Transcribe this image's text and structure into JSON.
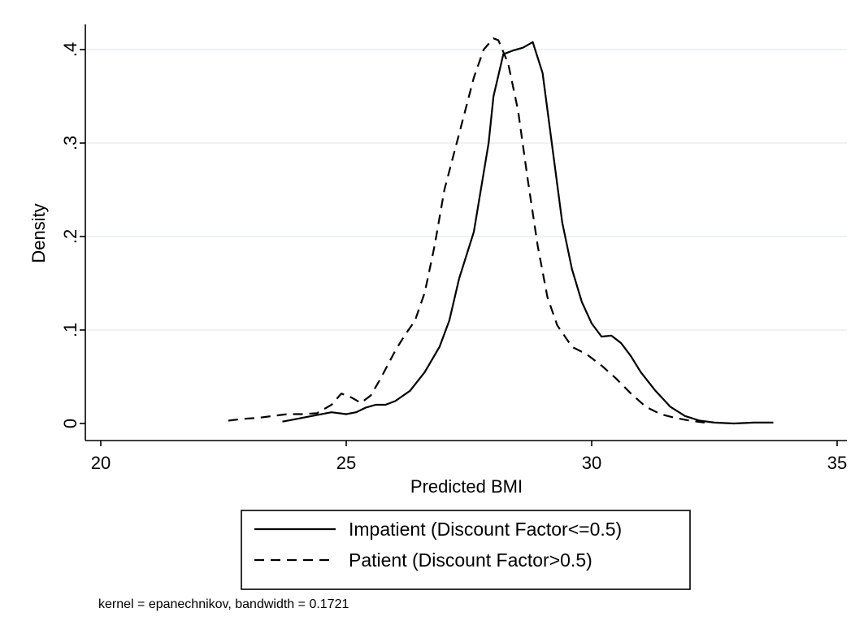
{
  "chart_data": {
    "type": "line",
    "title": "",
    "xlabel": "Predicted BMI",
    "ylabel": "Density",
    "xlim": [
      20,
      35
    ],
    "ylim": [
      0,
      0.42
    ],
    "xticks": [
      20,
      25,
      30,
      35
    ],
    "xtick_labels": [
      "20",
      "25",
      "30",
      "35"
    ],
    "yticks": [
      0,
      0.1,
      0.2,
      0.3,
      0.4
    ],
    "ytick_labels": [
      "0",
      ".1",
      ".2",
      ".3",
      ".4"
    ],
    "grid": "horizontal",
    "legend_position": "bottom",
    "note": "kernel = epanechnikov, bandwidth = 0.1721",
    "series": [
      {
        "name": "Impatient (Discount Factor<=0.5)",
        "style": "solid",
        "color": "#000000",
        "x": [
          23.7,
          23.9,
          24.3,
          24.7,
          25.0,
          25.2,
          25.4,
          25.6,
          25.8,
          26.0,
          26.3,
          26.6,
          26.9,
          27.1,
          27.3,
          27.6,
          27.9,
          28.0,
          28.2,
          28.4,
          28.6,
          28.8,
          29.0,
          29.2,
          29.4,
          29.6,
          29.8,
          30.0,
          30.2,
          30.4,
          30.6,
          30.8,
          31.0,
          31.3,
          31.6,
          31.9,
          32.2,
          32.5,
          32.9,
          33.3,
          33.7
        ],
        "y": [
          0.002,
          0.004,
          0.008,
          0.012,
          0.01,
          0.012,
          0.017,
          0.02,
          0.02,
          0.024,
          0.035,
          0.055,
          0.082,
          0.11,
          0.155,
          0.205,
          0.3,
          0.35,
          0.395,
          0.399,
          0.402,
          0.408,
          0.375,
          0.295,
          0.215,
          0.165,
          0.13,
          0.107,
          0.093,
          0.094,
          0.086,
          0.072,
          0.055,
          0.035,
          0.018,
          0.008,
          0.003,
          0.001,
          0.0,
          0.001,
          0.001
        ]
      },
      {
        "name": "Patient (Discount Factor>0.5)",
        "style": "dashed",
        "color": "#000000",
        "x": [
          22.6,
          22.9,
          23.2,
          23.5,
          23.8,
          24.1,
          24.4,
          24.7,
          24.9,
          25.1,
          25.3,
          25.5,
          25.7,
          26.0,
          26.2,
          26.4,
          26.6,
          26.8,
          27.0,
          27.2,
          27.4,
          27.6,
          27.8,
          28.0,
          28.1,
          28.3,
          28.5,
          28.7,
          28.9,
          29.1,
          29.3,
          29.6,
          29.9,
          30.2,
          30.5,
          30.8,
          31.1,
          31.4,
          31.7,
          32.0,
          32.3
        ],
        "y": [
          0.003,
          0.005,
          0.006,
          0.008,
          0.01,
          0.01,
          0.011,
          0.02,
          0.032,
          0.028,
          0.022,
          0.03,
          0.048,
          0.078,
          0.095,
          0.11,
          0.14,
          0.19,
          0.25,
          0.29,
          0.33,
          0.37,
          0.4,
          0.412,
          0.41,
          0.385,
          0.335,
          0.26,
          0.19,
          0.135,
          0.105,
          0.082,
          0.074,
          0.062,
          0.048,
          0.032,
          0.018,
          0.01,
          0.006,
          0.003,
          0.001
        ]
      }
    ]
  }
}
